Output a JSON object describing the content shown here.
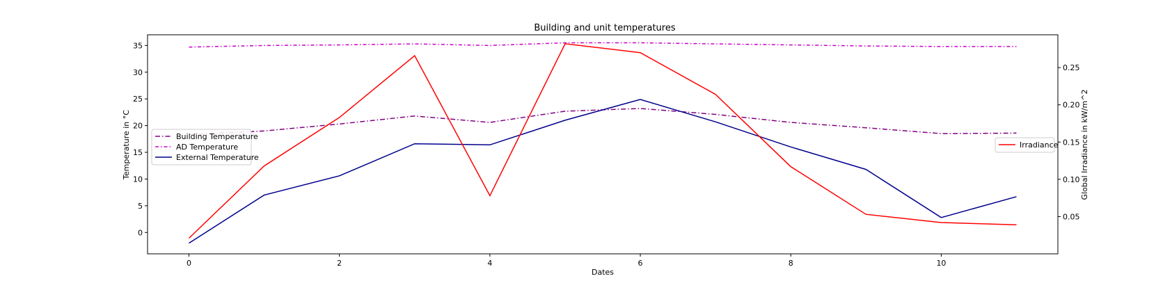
{
  "chart_data": {
    "type": "line",
    "title": "Building and unit temperatures",
    "xlabel": "Dates",
    "ylabel_left": "Temperature in °C",
    "ylabel_right": "Global Irradiance in kW/m^2",
    "x": [
      0,
      1,
      2,
      3,
      4,
      5,
      6,
      7,
      8,
      9,
      10,
      11
    ],
    "xlim": [
      -0.55,
      11.55
    ],
    "ylim_left": [
      -4,
      37
    ],
    "ylim_right": [
      0.0,
      0.294
    ],
    "x_ticks": [
      0,
      2,
      4,
      6,
      8,
      10
    ],
    "y_ticks_left": [
      0,
      5,
      10,
      15,
      20,
      25,
      30,
      35
    ],
    "y_ticks_right": [
      0.05,
      0.1,
      0.15,
      0.2,
      0.25
    ],
    "grid": false,
    "series": [
      {
        "name": "Building Temperature",
        "axis": "left",
        "color": "#800080",
        "linestyle": "dashdot",
        "values": [
          18.3,
          19.0,
          20.3,
          21.8,
          20.6,
          22.7,
          23.2,
          22.1,
          20.6,
          19.6,
          18.5,
          18.6
        ]
      },
      {
        "name": "AD Temperature",
        "axis": "left",
        "color": "#cc00cc",
        "linestyle": "dashdot-dense",
        "values": [
          34.7,
          35.0,
          35.1,
          35.3,
          35.0,
          35.5,
          35.5,
          35.3,
          35.1,
          34.9,
          34.8,
          34.8
        ]
      },
      {
        "name": "External Temperature",
        "axis": "left",
        "color": "#00008b",
        "linestyle": "solid",
        "values": [
          -2.0,
          7.0,
          10.6,
          16.6,
          16.4,
          21.0,
          24.9,
          20.7,
          16.0,
          11.8,
          2.8,
          6.7
        ]
      },
      {
        "name": "Irradiance",
        "axis": "right",
        "color": "#ff0000",
        "linestyle": "solid",
        "values": [
          0.021,
          0.118,
          0.183,
          0.266,
          0.078,
          0.282,
          0.27,
          0.214,
          0.117,
          0.053,
          0.042,
          0.039
        ]
      }
    ],
    "legend_left_placement": "center-left",
    "legend_right_placement": "center-right"
  }
}
